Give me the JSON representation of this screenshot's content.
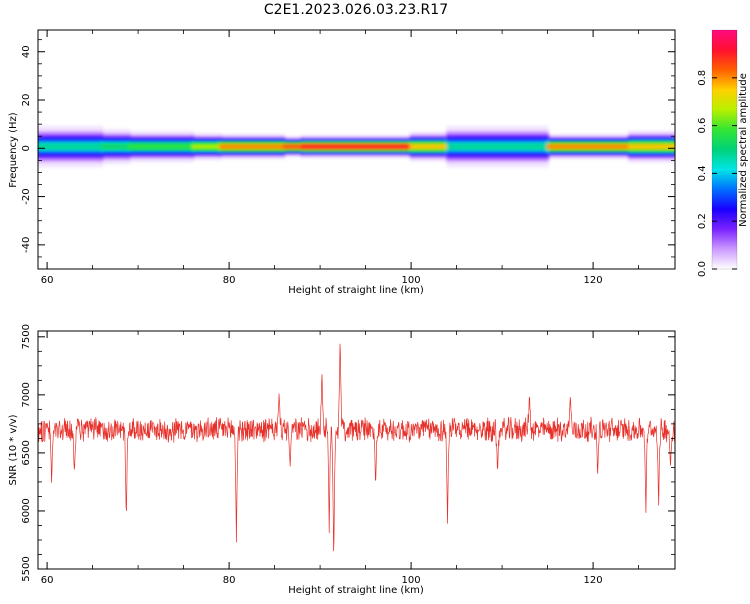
{
  "page": {
    "title": "C2E1.2023.026.03.23.R17"
  },
  "colors": {
    "snr_line": "#e8302a",
    "axis": "#000000",
    "background": "#ffffff",
    "colormap": [
      "#ffffff",
      "#cc99ff",
      "#7a22ff",
      "#1a00ff",
      "#0070ff",
      "#00e5e5",
      "#00d27a",
      "#33e633",
      "#b8f000",
      "#ffd000",
      "#ff6000",
      "#ff1030",
      "#ff0a80"
    ]
  },
  "chart_data": [
    {
      "type": "heatmap",
      "title": "C2E1.2023.026.03.23.R17",
      "xlabel": "Height of straight line (km)",
      "ylabel": "Frequency (Hz)",
      "xlim": [
        59,
        129
      ],
      "ylim": [
        -50,
        49
      ],
      "x_ticks": [
        60,
        80,
        100,
        120
      ],
      "y_ticks": [
        40,
        20,
        0,
        -20,
        -40
      ],
      "grid": false,
      "colorbar": {
        "label": "Normalized spectral amplitude",
        "range": [
          0,
          1
        ],
        "ticks": [
          0.0,
          0.2,
          0.4,
          0.6,
          0.8
        ]
      },
      "ridge": {
        "center_frequency_hz": 1,
        "segments": [
          {
            "x": [
              59,
              66
            ],
            "peak_amplitude": 0.5,
            "half_width_hz": 1.8
          },
          {
            "x": [
              66,
              69
            ],
            "peak_amplitude": 0.55,
            "half_width_hz": 1.5
          },
          {
            "x": [
              69,
              76
            ],
            "peak_amplitude": 0.6,
            "half_width_hz": 1.3
          },
          {
            "x": [
              76,
              79
            ],
            "peak_amplitude": 0.7,
            "half_width_hz": 1.1
          },
          {
            "x": [
              79,
              86
            ],
            "peak_amplitude": 0.85,
            "half_width_hz": 1.0
          },
          {
            "x": [
              86,
              88
            ],
            "peak_amplitude": 0.9,
            "half_width_hz": 0.8
          },
          {
            "x": [
              88,
              100
            ],
            "peak_amplitude": 0.95,
            "half_width_hz": 0.9
          },
          {
            "x": [
              100,
              104
            ],
            "peak_amplitude": 0.8,
            "half_width_hz": 1.2
          },
          {
            "x": [
              104,
              115
            ],
            "peak_amplitude": 0.5,
            "half_width_hz": 1.8
          },
          {
            "x": [
              115,
              124
            ],
            "peak_amplitude": 0.85,
            "half_width_hz": 1.0
          },
          {
            "x": [
              124,
              129
            ],
            "peak_amplitude": 0.8,
            "half_width_hz": 1.3
          }
        ]
      }
    },
    {
      "type": "line",
      "xlabel": "Height of straight line (km)",
      "ylabel": "SNR (10 * v/v)",
      "xlim": [
        59,
        129
      ],
      "ylim": [
        5500,
        7550
      ],
      "x_ticks": [
        60,
        80,
        100,
        120
      ],
      "y_ticks": [
        7500,
        7000,
        6500,
        6000,
        5500
      ],
      "grid": false,
      "baseline": 6700,
      "noise_amplitude": 90,
      "features": [
        {
          "kind": "dip",
          "x": 60.5,
          "y": 6200
        },
        {
          "kind": "dip",
          "x": 63,
          "y": 6300
        },
        {
          "kind": "dip",
          "x": 68.7,
          "y": 5900
        },
        {
          "kind": "dip",
          "x": 80.8,
          "y": 5720
        },
        {
          "kind": "peak",
          "x": 85.5,
          "y": 7040
        },
        {
          "kind": "dip",
          "x": 86.7,
          "y": 6350
        },
        {
          "kind": "peak",
          "x": 90.2,
          "y": 7230
        },
        {
          "kind": "dip",
          "x": 91,
          "y": 5800
        },
        {
          "kind": "dip",
          "x": 91.5,
          "y": 5500
        },
        {
          "kind": "peak",
          "x": 92.2,
          "y": 7550
        },
        {
          "kind": "dip",
          "x": 96.1,
          "y": 6180
        },
        {
          "kind": "dip",
          "x": 104,
          "y": 5870
        },
        {
          "kind": "dip",
          "x": 109.5,
          "y": 6300
        },
        {
          "kind": "peak",
          "x": 113,
          "y": 7030
        },
        {
          "kind": "peak",
          "x": 117.5,
          "y": 7020
        },
        {
          "kind": "dip",
          "x": 120.5,
          "y": 6300
        },
        {
          "kind": "dip",
          "x": 125.8,
          "y": 5960
        },
        {
          "kind": "dip",
          "x": 127.2,
          "y": 6020
        },
        {
          "kind": "dip",
          "x": 128.5,
          "y": 6350
        }
      ]
    }
  ]
}
